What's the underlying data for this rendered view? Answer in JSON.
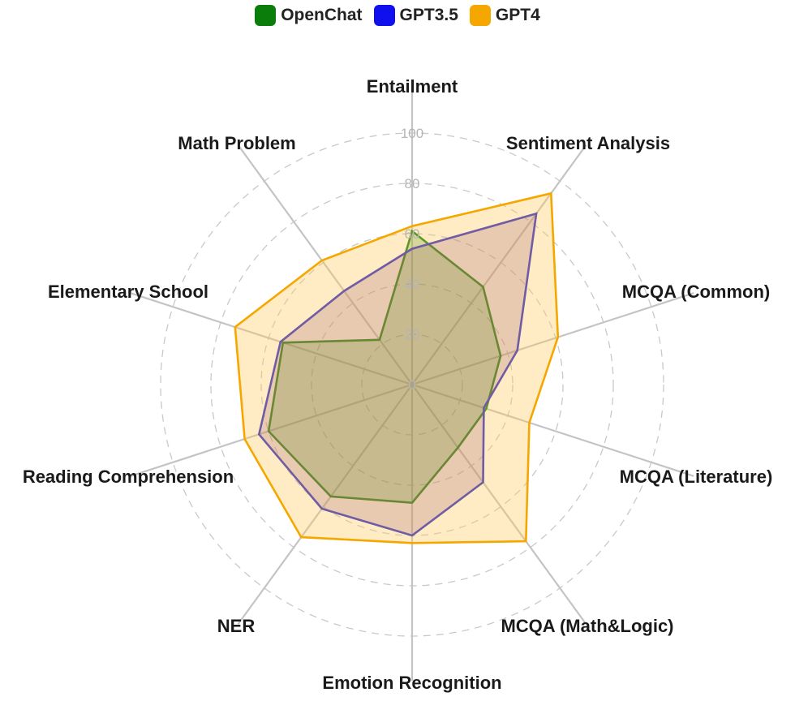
{
  "chart_data": {
    "type": "radar",
    "title": "",
    "axes": [
      "Entailment",
      "Sentiment Analysis",
      "MCQA (Common)",
      "MCQA (Literature)",
      "MCQA (Math&Logic)",
      "Emotion Recognition",
      "NER",
      "Reading Comprehension",
      "Elementary School",
      "Math Problem"
    ],
    "rlim": [
      0,
      100
    ],
    "ticks": [
      "0",
      "20",
      "40",
      "60",
      "80",
      "100"
    ],
    "tick_values": [
      0,
      20,
      40,
      60,
      80,
      100
    ],
    "grid": "dashed",
    "legend_position": "top",
    "series": [
      {
        "name": "OpenChat",
        "color": "#0a7d0a",
        "fill": "rgba(0,128,0,0.25)",
        "values": [
          61,
          48,
          37,
          31,
          31,
          47,
          55,
          60,
          54,
          22
        ]
      },
      {
        "name": "GPT3.5",
        "color": "#2222cc",
        "fill": "rgba(90,20,110,0.22)",
        "values": [
          54,
          84,
          44,
          30,
          48,
          60,
          61,
          64,
          55,
          46
        ]
      },
      {
        "name": "GPT4",
        "color": "#f5a700",
        "fill": "rgba(255,200,90,0.35)",
        "values": [
          63,
          94,
          61,
          49,
          77,
          63,
          75,
          70,
          74,
          61
        ]
      }
    ]
  }
}
